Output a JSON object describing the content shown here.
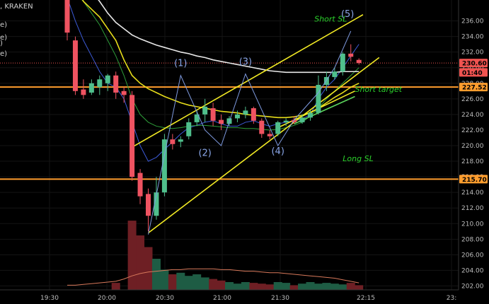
{
  "header": {
    "exchange": ", KRAKEN",
    "legend_fragments": [
      "e)",
      "e)",
      ")",
      "e)"
    ]
  },
  "chart_data": {
    "type": "candlestick",
    "ylim": [
      201.5,
      238.5
    ],
    "x_ticks": [
      "19:30",
      "20:00",
      "20:30",
      "21:00",
      "21:30",
      "22:15",
      "23:"
    ],
    "y_ticks": [
      236,
      234,
      232,
      230,
      228,
      226,
      224,
      222,
      220,
      218,
      216,
      214,
      212,
      210,
      208,
      206,
      204,
      202
    ],
    "price_tags": [
      {
        "label": "230.60",
        "value": 230.6,
        "color": "#ef5350",
        "text_color": "#000000"
      },
      {
        "label": "01:40",
        "value": 229.4,
        "color": "#ef5350",
        "text_color": "#000000"
      },
      {
        "label": "227.52",
        "value": 227.52,
        "color": "#ff9d2e",
        "text_color": "#000000"
      },
      {
        "label": "215.70",
        "value": 215.7,
        "color": "#ff9d2e",
        "text_color": "#000000"
      }
    ],
    "hlines": [
      {
        "value": 227.52,
        "color": "#ff9d2e"
      },
      {
        "value": 215.7,
        "color": "#ff9d2e"
      }
    ],
    "candles": [
      {
        "t": 0,
        "o": 240.0,
        "h": 240.0,
        "c": 234.5,
        "l": 233.5
      },
      {
        "t": 1,
        "o": 233.5,
        "h": 234.0,
        "c": 227.0,
        "l": 226.5
      },
      {
        "t": 2,
        "o": 227.2,
        "h": 228.5,
        "c": 226.5,
        "l": 226.0
      },
      {
        "t": 3,
        "o": 226.8,
        "h": 228.5,
        "c": 228.0,
        "l": 226.5
      },
      {
        "t": 4,
        "o": 227.5,
        "h": 229.0,
        "c": 228.5,
        "l": 226.5
      },
      {
        "t": 5,
        "o": 228.0,
        "h": 229.2,
        "c": 229.0,
        "l": 227.0
      },
      {
        "t": 6,
        "o": 229.0,
        "h": 229.5,
        "c": 226.8,
        "l": 226.0
      },
      {
        "t": 7,
        "o": 227.0,
        "h": 227.5,
        "c": 226.5,
        "l": 225.5
      },
      {
        "t": 8,
        "o": 226.5,
        "h": 227.0,
        "c": 216.0,
        "l": 215.5
      },
      {
        "t": 9,
        "o": 216.5,
        "h": 217.0,
        "c": 213.5,
        "l": 212.5
      },
      {
        "t": 10,
        "o": 213.8,
        "h": 214.5,
        "c": 211.0,
        "l": 209.0
      },
      {
        "t": 11,
        "o": 211.0,
        "h": 216.0,
        "c": 214.0,
        "l": 210.5
      },
      {
        "t": 12,
        "o": 214.0,
        "h": 221.5,
        "c": 220.8,
        "l": 213.5
      },
      {
        "t": 13,
        "o": 220.8,
        "h": 221.5,
        "c": 220.2,
        "l": 219.5
      },
      {
        "t": 14,
        "o": 220.5,
        "h": 221.2,
        "c": 220.8,
        "l": 219.8
      },
      {
        "t": 15,
        "o": 221.2,
        "h": 223.5,
        "c": 223.0,
        "l": 220.8
      },
      {
        "t": 16,
        "o": 223.0,
        "h": 224.5,
        "c": 224.0,
        "l": 222.5
      },
      {
        "t": 17,
        "o": 224.0,
        "h": 226.0,
        "c": 225.0,
        "l": 223.0
      },
      {
        "t": 18,
        "o": 224.8,
        "h": 225.5,
        "c": 223.2,
        "l": 222.5
      },
      {
        "t": 19,
        "o": 223.3,
        "h": 224.0,
        "c": 222.8,
        "l": 222.0
      },
      {
        "t": 20,
        "o": 222.8,
        "h": 223.8,
        "c": 223.5,
        "l": 222.5
      },
      {
        "t": 21,
        "o": 223.5,
        "h": 224.5,
        "c": 224.0,
        "l": 223.0
      },
      {
        "t": 22,
        "o": 224.0,
        "h": 225.0,
        "c": 224.5,
        "l": 223.5
      },
      {
        "t": 23,
        "o": 224.8,
        "h": 225.0,
        "c": 223.2,
        "l": 222.8
      },
      {
        "t": 24,
        "o": 223.2,
        "h": 223.5,
        "c": 221.5,
        "l": 221.0
      },
      {
        "t": 25,
        "o": 221.5,
        "h": 222.0,
        "c": 221.2,
        "l": 220.8
      },
      {
        "t": 26,
        "o": 221.5,
        "h": 223.2,
        "c": 223.0,
        "l": 221.2
      },
      {
        "t": 27,
        "o": 223.0,
        "h": 223.5,
        "c": 223.2,
        "l": 222.5
      },
      {
        "t": 28,
        "o": 223.3,
        "h": 223.8,
        "c": 223.0,
        "l": 222.8
      },
      {
        "t": 29,
        "o": 223.0,
        "h": 224.0,
        "c": 223.6,
        "l": 222.8
      },
      {
        "t": 30,
        "o": 223.6,
        "h": 224.5,
        "c": 224.2,
        "l": 223.2
      },
      {
        "t": 31,
        "o": 224.2,
        "h": 229.0,
        "c": 227.8,
        "l": 224.0
      },
      {
        "t": 32,
        "o": 227.8,
        "h": 229.5,
        "c": 228.8,
        "l": 227.0
      },
      {
        "t": 33,
        "o": 228.8,
        "h": 230.0,
        "c": 229.5,
        "l": 228.5
      },
      {
        "t": 34,
        "o": 229.5,
        "h": 232.0,
        "c": 231.8,
        "l": 229.0
      },
      {
        "t": 35,
        "o": 231.8,
        "h": 233.0,
        "c": 231.4,
        "l": 230.8
      },
      {
        "t": 36,
        "o": 231.0,
        "h": 231.2,
        "c": 230.6,
        "l": 230.4
      }
    ],
    "volume_ylim": [
      0,
      100
    ],
    "volume": [
      0,
      0,
      0,
      0,
      0,
      0,
      9,
      0,
      89,
      70,
      55,
      40,
      26,
      20,
      22,
      18,
      20,
      16,
      14,
      12,
      10,
      8,
      10,
      9,
      8,
      7,
      10,
      9,
      6,
      8,
      10,
      8,
      9,
      8,
      7,
      9,
      6
    ],
    "volume_ma": [
      6,
      6,
      7,
      8,
      9,
      10,
      11,
      14,
      18,
      21,
      23,
      24,
      25,
      26,
      26,
      27,
      27,
      27,
      27,
      26,
      26,
      25,
      24,
      24,
      23,
      22,
      22,
      21,
      20,
      19,
      18,
      17,
      16,
      15,
      13,
      11,
      9
    ],
    "ma_white": [
      243.5,
      242.0,
      240.8,
      239.8,
      238.5,
      237.0,
      235.8,
      235.0,
      234.2,
      233.7,
      233.3,
      232.9,
      232.6,
      232.3,
      232.0,
      231.8,
      231.5,
      231.3,
      231.0,
      230.8,
      230.6,
      230.4,
      230.2,
      230.0,
      229.8,
      229.6,
      229.5,
      229.4,
      229.4,
      229.4,
      229.4,
      229.4,
      229.4,
      229.4,
      229.5,
      229.5,
      229.5
    ],
    "ma_yellow": [
      243.0,
      240.5,
      238.5,
      237.5,
      236.5,
      235.0,
      233.5,
      231.0,
      229.0,
      228.0,
      227.3,
      226.8,
      226.3,
      225.9,
      225.5,
      225.2,
      225.0,
      224.8,
      224.6,
      224.4,
      224.3,
      224.2,
      224.0,
      223.9,
      223.8,
      223.7,
      223.6,
      223.6,
      223.7,
      223.9,
      224.2,
      224.8,
      225.5,
      226.2,
      226.8,
      227.5,
      228.0
    ],
    "ma_green": [
      241.0,
      239.5,
      238.5,
      237.0,
      235.5,
      233.5,
      231.5,
      229.0,
      226.0,
      224.0,
      223.0,
      222.5,
      222.3,
      222.2,
      222.3,
      222.5,
      222.6,
      222.6,
      222.5,
      222.4,
      222.3,
      222.3,
      222.2,
      222.2,
      222.1,
      222.0,
      222.1,
      222.3,
      222.6,
      223.0,
      223.8,
      224.8,
      226.0,
      227.0,
      228.0,
      229.0,
      230.0
    ],
    "ma_blue": [
      239.0,
      236.0,
      233.5,
      231.5,
      229.5,
      228.0,
      227.5,
      226.0,
      223.0,
      220.0,
      218.0,
      218.5,
      219.5,
      220.5,
      221.5,
      222.3,
      222.6,
      223.0,
      223.2,
      222.8,
      222.5,
      222.5,
      223.0,
      223.2,
      222.8,
      222.5,
      222.8,
      223.0,
      223.2,
      223.4,
      224.0,
      226.0,
      227.5,
      228.5,
      230.0,
      231.5,
      233.0
    ],
    "wave_path": [
      [
        10,
        208.6
      ],
      [
        14,
        229.0
      ],
      [
        17,
        222.0
      ],
      [
        19,
        220.0
      ],
      [
        22,
        229.2
      ],
      [
        26,
        220.0
      ],
      [
        28,
        223.3
      ],
      [
        31,
        226.8
      ],
      [
        33,
        230.0
      ],
      [
        35,
        234.7
      ]
    ],
    "trendlines": [
      {
        "x1": 8,
        "y1": 219.8,
        "x2": 36.5,
        "y2": 236.8,
        "color": "#f2ea24"
      },
      {
        "x1": 10,
        "y1": 208.8,
        "x2": 38.5,
        "y2": 231.3,
        "color": "#f2ea24"
      },
      {
        "x1": 26,
        "y1": 222.3,
        "x2": 35.5,
        "y2": 227.0,
        "color": "#f2ea24"
      },
      {
        "x1": 28,
        "y1": 222.8,
        "x2": 35.5,
        "y2": 226.3,
        "color": "#5cd65c"
      }
    ],
    "wave_labels": [
      {
        "label": "(1)",
        "t": 14,
        "v": 230.2
      },
      {
        "label": "(2)",
        "t": 17,
        "v": 218.7
      },
      {
        "label": "(3)",
        "t": 22,
        "v": 230.4
      },
      {
        "label": "(4)",
        "t": 26,
        "v": 218.9
      },
      {
        "label": "(5)",
        "t": 34.6,
        "v": 236.5
      }
    ],
    "annotations": [
      {
        "label": "Short SL",
        "t": 30.5,
        "v": 235.9
      },
      {
        "label": "Short target",
        "t": 35.5,
        "v": 226.9
      },
      {
        "label": "Long SL",
        "t": 34.0,
        "v": 218.0
      }
    ]
  }
}
